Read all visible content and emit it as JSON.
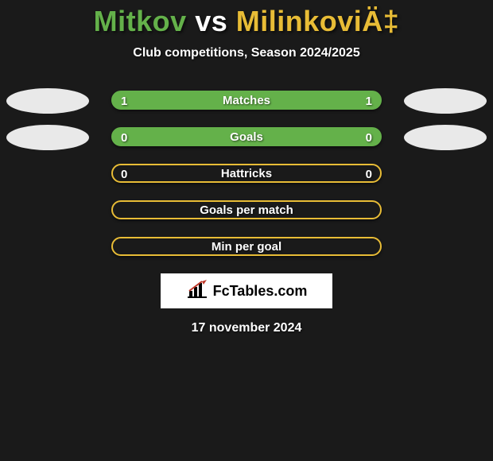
{
  "title": {
    "player1": "Mitkov",
    "vs": "vs",
    "player2": "MilinkoviÄ‡",
    "player1_color": "#64b14a",
    "vs_color": "#ffffff",
    "player2_color": "#e8bc36"
  },
  "subtitle": "Club competitions, Season 2024/2025",
  "background_color": "#1a1a1a",
  "ellipse_color": "#e9e9e9",
  "rows": [
    {
      "label": "Matches",
      "left": "1",
      "right": "1",
      "pill_color": "#64b14a",
      "border_color": "#64b14a",
      "hollow": false,
      "show_ellipses": true,
      "show_values": true
    },
    {
      "label": "Goals",
      "left": "0",
      "right": "0",
      "pill_color": "#64b14a",
      "border_color": "#64b14a",
      "hollow": false,
      "show_ellipses": true,
      "show_values": true
    },
    {
      "label": "Hattricks",
      "left": "0",
      "right": "0",
      "pill_color": "#131313",
      "border_color": "#e8bc36",
      "hollow": true,
      "show_ellipses": false,
      "show_values": true
    },
    {
      "label": "Goals per match",
      "left": "",
      "right": "",
      "pill_color": "#131313",
      "border_color": "#e8bc36",
      "hollow": true,
      "show_ellipses": false,
      "show_values": false
    },
    {
      "label": "Min per goal",
      "left": "",
      "right": "",
      "pill_color": "#131313",
      "border_color": "#e8bc36",
      "hollow": true,
      "show_ellipses": false,
      "show_values": false
    }
  ],
  "logo": {
    "icon_name": "bar-chart-icon",
    "text": "FcTables.com",
    "bar_color": "#000000",
    "accent_color": "#c0392b"
  },
  "date": "17 november 2024"
}
